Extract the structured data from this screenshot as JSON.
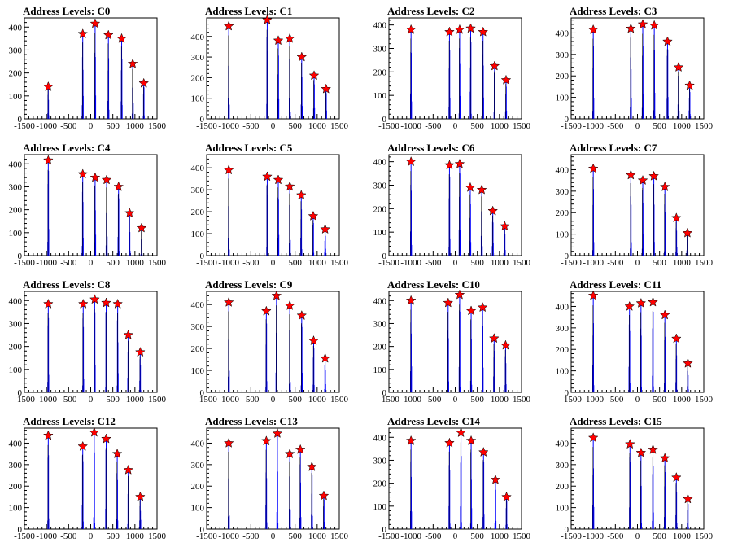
{
  "chart_data": {
    "type": "bar",
    "layout": "4x4 grid of histograms",
    "title_prefix": "Address Levels: ",
    "xlim": [
      -1500,
      1500
    ],
    "xticks": [
      -1500,
      -1000,
      -500,
      0,
      500,
      1000,
      1500
    ],
    "xtick_labels": [
      "-1500",
      "-1000",
      "-500",
      "0",
      "500",
      "1000",
      "1500"
    ],
    "series_color": "#0000ff",
    "marker_color": "#ff0000",
    "panels": [
      {
        "title": "Address Levels: C0",
        "ylim": [
          0,
          440
        ],
        "yticks": [
          0,
          100,
          200,
          300,
          400
        ],
        "peaks_x": [
          -960,
          -180,
          100,
          400,
          700,
          950,
          1200
        ],
        "peaks_y": [
          140,
          370,
          415,
          365,
          350,
          240,
          155
        ]
      },
      {
        "title": "Address Levels: C1",
        "ylim": [
          0,
          490
        ],
        "yticks": [
          0,
          100,
          200,
          300,
          400
        ],
        "peaks_x": [
          -1000,
          -130,
          120,
          380,
          650,
          930,
          1200
        ],
        "peaks_y": [
          450,
          480,
          380,
          390,
          300,
          210,
          145
        ]
      },
      {
        "title": "Address Levels: C2",
        "ylim": [
          0,
          430
        ],
        "yticks": [
          0,
          100,
          200,
          300,
          400
        ],
        "peaks_x": [
          -1000,
          -130,
          100,
          350,
          630,
          890,
          1150
        ],
        "peaks_y": [
          380,
          370,
          380,
          385,
          370,
          225,
          165
        ]
      },
      {
        "title": "Address Levels: C3",
        "ylim": [
          0,
          470
        ],
        "yticks": [
          0,
          100,
          200,
          300,
          400
        ],
        "peaks_x": [
          -1000,
          -150,
          120,
          380,
          680,
          930,
          1180
        ],
        "peaks_y": [
          415,
          420,
          440,
          435,
          360,
          240,
          155
        ]
      },
      {
        "title": "Address Levels: C4",
        "ylim": [
          0,
          440
        ],
        "yticks": [
          0,
          100,
          200,
          300,
          400
        ],
        "peaks_x": [
          -960,
          -180,
          100,
          360,
          630,
          880,
          1150
        ],
        "peaks_y": [
          415,
          355,
          340,
          330,
          300,
          185,
          120
        ]
      },
      {
        "title": "Address Levels: C5",
        "ylim": [
          0,
          460
        ],
        "yticks": [
          0,
          100,
          200,
          300,
          400
        ],
        "peaks_x": [
          -1000,
          -130,
          120,
          380,
          640,
          910,
          1180
        ],
        "peaks_y": [
          390,
          360,
          345,
          315,
          275,
          180,
          120
        ]
      },
      {
        "title": "Address Levels: C6",
        "ylim": [
          0,
          430
        ],
        "yticks": [
          0,
          100,
          200,
          300,
          400
        ],
        "peaks_x": [
          -1000,
          -130,
          100,
          340,
          600,
          850,
          1120
        ],
        "peaks_y": [
          400,
          385,
          390,
          290,
          280,
          190,
          125
        ]
      },
      {
        "title": "Address Levels: C7",
        "ylim": [
          0,
          470
        ],
        "yticks": [
          0,
          100,
          200,
          300,
          400
        ],
        "peaks_x": [
          -1000,
          -150,
          120,
          370,
          620,
          880,
          1130
        ],
        "peaks_y": [
          405,
          375,
          350,
          370,
          320,
          175,
          105
        ]
      },
      {
        "title": "Address Levels: C8",
        "ylim": [
          0,
          440
        ],
        "yticks": [
          0,
          100,
          200,
          300,
          400
        ],
        "peaks_x": [
          -960,
          -170,
          90,
          350,
          610,
          850,
          1120
        ],
        "peaks_y": [
          385,
          385,
          405,
          390,
          385,
          250,
          175
        ]
      },
      {
        "title": "Address Levels: C9",
        "ylim": [
          0,
          460
        ],
        "yticks": [
          0,
          100,
          200,
          300,
          400
        ],
        "peaks_x": [
          -1000,
          -150,
          80,
          380,
          650,
          920,
          1180
        ],
        "peaks_y": [
          410,
          370,
          440,
          395,
          350,
          235,
          155
        ]
      },
      {
        "title": "Address Levels: C10",
        "ylim": [
          0,
          440
        ],
        "yticks": [
          0,
          100,
          200,
          300,
          400
        ],
        "peaks_x": [
          -1000,
          -160,
          100,
          360,
          620,
          880,
          1140
        ],
        "peaks_y": [
          400,
          390,
          425,
          355,
          370,
          235,
          205
        ]
      },
      {
        "title": "Address Levels: C11",
        "ylim": [
          0,
          470
        ],
        "yticks": [
          0,
          100,
          200,
          300,
          400
        ],
        "peaks_x": [
          -1000,
          -180,
          80,
          350,
          620,
          880,
          1140
        ],
        "peaks_y": [
          450,
          400,
          415,
          420,
          360,
          250,
          135
        ]
      },
      {
        "title": "Address Levels: C12",
        "ylim": [
          0,
          470
        ],
        "yticks": [
          0,
          100,
          200,
          300,
          400
        ],
        "peaks_x": [
          -960,
          -180,
          80,
          350,
          600,
          850,
          1120
        ],
        "peaks_y": [
          435,
          385,
          450,
          420,
          350,
          275,
          150
        ]
      },
      {
        "title": "Address Levels: C13",
        "ylim": [
          0,
          470
        ],
        "yticks": [
          0,
          100,
          200,
          300,
          400
        ],
        "peaks_x": [
          -1000,
          -150,
          100,
          380,
          620,
          880,
          1150
        ],
        "peaks_y": [
          400,
          410,
          445,
          350,
          370,
          290,
          155
        ]
      },
      {
        "title": "Address Levels: C14",
        "ylim": [
          0,
          440
        ],
        "yticks": [
          0,
          100,
          200,
          300,
          400
        ],
        "peaks_x": [
          -1000,
          -130,
          130,
          360,
          640,
          910,
          1160
        ],
        "peaks_y": [
          385,
          375,
          420,
          385,
          335,
          215,
          140
        ]
      },
      {
        "title": "Address Levels: C15",
        "ylim": [
          0,
          470
        ],
        "yticks": [
          0,
          100,
          200,
          300,
          400
        ],
        "peaks_x": [
          -1000,
          -170,
          80,
          350,
          620,
          880,
          1140
        ],
        "peaks_y": [
          425,
          395,
          355,
          370,
          330,
          240,
          140
        ]
      }
    ]
  }
}
